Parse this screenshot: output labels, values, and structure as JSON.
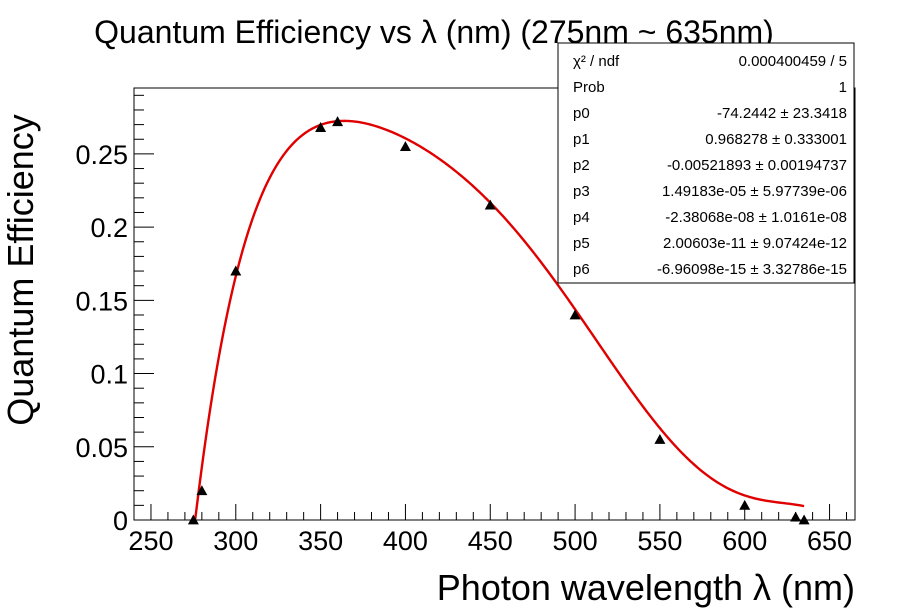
{
  "chart_data": {
    "type": "scatter",
    "title": "Quantum Efficiency vs λ (nm) (275nm ~ 635nm)",
    "xlabel": "Photon wavelength λ (nm)",
    "ylabel": "Quantum Efficiency",
    "xlim": [
      240,
      665
    ],
    "ylim": [
      0,
      0.295
    ],
    "x_ticks": [
      "250",
      "300",
      "350",
      "400",
      "450",
      "500",
      "550",
      "600",
      "650"
    ],
    "y_ticks": [
      "0",
      "0.05",
      "0.1",
      "0.15",
      "0.2",
      "0.25"
    ],
    "marker": "triangle",
    "marker_color": "#000000",
    "series": [
      {
        "points": [
          {
            "x": 275,
            "y": 0.0
          },
          {
            "x": 280,
            "y": 0.02
          },
          {
            "x": 300,
            "y": 0.17
          },
          {
            "x": 350,
            "y": 0.268
          },
          {
            "x": 360,
            "y": 0.272
          },
          {
            "x": 400,
            "y": 0.255
          },
          {
            "x": 450,
            "y": 0.215
          },
          {
            "x": 500,
            "y": 0.14
          },
          {
            "x": 550,
            "y": 0.055
          },
          {
            "x": 600,
            "y": 0.01
          },
          {
            "x": 630,
            "y": 0.002
          },
          {
            "x": 635,
            "y": 0.0
          }
        ]
      }
    ],
    "fit": {
      "color": "#e00000",
      "range": [
        275,
        635
      ],
      "params": [
        -74.2442,
        0.968278,
        -0.00521893,
        1.49183e-05,
        -2.38068e-08,
        2.00603e-11,
        -6.96098e-15
      ]
    },
    "stats_box": {
      "rows": [
        {
          "label": "χ² / ndf",
          "value": "0.000400459 / 5"
        },
        {
          "label": "Prob",
          "value": "1"
        },
        {
          "label": "p0",
          "value": "-74.2442 ± 23.3418"
        },
        {
          "label": "p1",
          "value": "0.968278 ± 0.333001"
        },
        {
          "label": "p2",
          "value": "-0.00521893 ± 0.00194737"
        },
        {
          "label": "p3",
          "value": "1.49183e-05 ± 5.97739e-06"
        },
        {
          "label": "p4",
          "value": "-2.38068e-08 ± 1.0161e-08"
        },
        {
          "label": "p5",
          "value": "2.00603e-11 ± 9.07424e-12"
        },
        {
          "label": "p6",
          "value": "-6.96098e-15 ± 3.32786e-15"
        }
      ]
    }
  }
}
